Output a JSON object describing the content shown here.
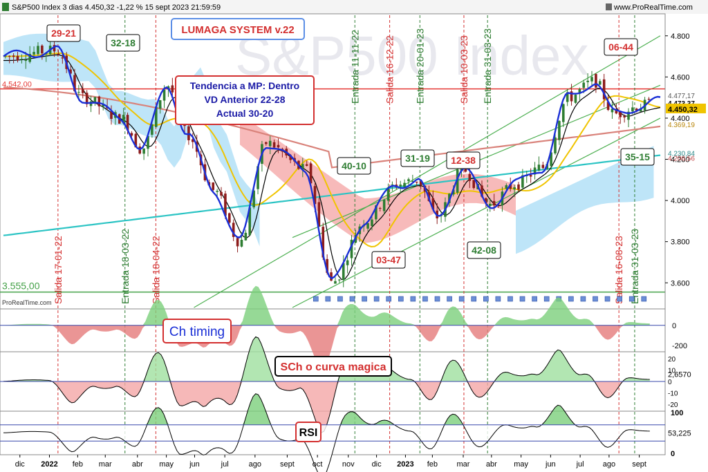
{
  "header": {
    "title": "S&P500 Index 3 dias 4.450,32 -1,22 % 15 sept 2023 21:59:59",
    "site": "www.ProRealTime.com",
    "watermark": "S&P500 Index",
    "credit": "ProRealTime.com"
  },
  "colors": {
    "up_candle": "#2e7d32",
    "down_candle": "#8d1c1c",
    "blue_line": "#1a2fd6",
    "black_line": "#000000",
    "yellow_ma": "#f0c400",
    "red_ma": "#d9827a",
    "cyan_ma": "#2cc4c4",
    "channel": "#4caf50",
    "resistance": "#e53935",
    "support": "#43a047",
    "cloud_red": "#f4a3a3",
    "cloud_blue": "#a8dcf5"
  },
  "chart_data": [
    {
      "panel": "price",
      "type": "line",
      "y_ticks": [
        "4.800",
        "4.600",
        "4.400",
        "4.200",
        "4.000",
        "3.800",
        "3.600"
      ],
      "ylim": [
        3480,
        4900
      ],
      "x_labels": [
        "dic",
        "2022",
        "feb",
        "mar",
        "abr",
        "may",
        "jun",
        "jul",
        "ago",
        "sept",
        "oct",
        "nov",
        "dic",
        "2023",
        "feb",
        "mar",
        "abr",
        "may",
        "jun",
        "jul",
        "ago",
        "sept"
      ],
      "price_labels": [
        {
          "text": "4.473,37",
          "value": 4473.37
        },
        {
          "text": "4.450,32",
          "value": 4450.32
        },
        {
          "text": "4.369,19",
          "value": 4369.19
        },
        {
          "text": "4.230,84",
          "value": 4230.84
        },
        {
          "text": "4.206,56",
          "value": 4206.56
        },
        {
          "text": "4.477,17",
          "value": 4477.17
        }
      ],
      "left_labels": [
        {
          "text": "4.542,00",
          "value": 4542
        },
        {
          "text": "3.555,00",
          "value": 3555
        }
      ],
      "horizontal_levels": [
        {
          "name": "resistance",
          "value": 4542
        },
        {
          "name": "support",
          "value": 3555
        }
      ],
      "blue_trend": {
        "name": "Lumaga trend",
        "x": [
          0,
          0.08,
          0.12,
          0.18,
          0.21,
          0.25,
          0.28,
          0.32,
          0.36,
          0.4,
          0.46,
          0.5,
          0.55,
          0.6,
          0.63,
          0.66,
          0.7,
          0.74,
          0.78,
          0.82,
          0.86,
          0.9,
          0.93,
          0.97,
          1.0
        ],
        "y": [
          4700,
          4730,
          4500,
          4400,
          4250,
          4560,
          4320,
          4050,
          3800,
          4280,
          4150,
          3600,
          3900,
          4080,
          4100,
          3920,
          4150,
          3980,
          4080,
          4160,
          4500,
          4580,
          4420,
          4460,
          4480
        ]
      },
      "annotations": [
        {
          "text": "29-21",
          "color": "#d32f2f"
        },
        {
          "text": "32-18",
          "color": "#2e7d32"
        },
        {
          "text": "40-10",
          "color": "#2e7d32"
        },
        {
          "text": "31-19",
          "color": "#2e7d32"
        },
        {
          "text": "12-38",
          "color": "#d32f2f"
        },
        {
          "text": "03-47",
          "color": "#d32f2f"
        },
        {
          "text": "42-08",
          "color": "#2e7d32"
        },
        {
          "text": "06-44",
          "color": "#d32f2f"
        },
        {
          "text": "35-15",
          "color": "#2e7d32"
        }
      ],
      "system_label": "LUMAGA SYSTEM v.22",
      "info_box": [
        "Tendencia a MP: Dentro",
        "VD Anterior 22-28",
        "Actual 30-20"
      ],
      "signals": [
        {
          "text": "Salida 17-01-22",
          "kind": "exit"
        },
        {
          "text": "Entrada 18-03-22",
          "kind": "entry"
        },
        {
          "text": "Salida 18-04-22",
          "kind": "exit"
        },
        {
          "text": "Entrada 11-11-22",
          "kind": "entry"
        },
        {
          "text": "Salida 16-12-22",
          "kind": "exit"
        },
        {
          "text": "Entrada 20-01-23",
          "kind": "entry"
        },
        {
          "text": "Salida 10-03-23",
          "kind": "exit"
        },
        {
          "text": "Entrada 31-03-23",
          "kind": "entry"
        },
        {
          "text": "Salida 16-08-23",
          "kind": "exit"
        },
        {
          "text": "Entrada 31-03-23",
          "kind": "entry"
        }
      ]
    },
    {
      "panel": "ch_timing",
      "type": "area",
      "label": "Ch timing",
      "y_ticks": [
        "0",
        "-200"
      ],
      "ylim": [
        -250,
        150
      ]
    },
    {
      "panel": "sch",
      "type": "area",
      "label": "SCh o curva magica",
      "y_ticks": [
        "20",
        "10",
        "0",
        "-10",
        "-20"
      ],
      "value_label": "2,6570",
      "ylim": [
        -25,
        25
      ]
    },
    {
      "panel": "rsi",
      "type": "area",
      "label": "RSI",
      "y_ticks": [
        "100",
        "0"
      ],
      "value_label": "53,225",
      "ylim": [
        0,
        100
      ]
    }
  ]
}
